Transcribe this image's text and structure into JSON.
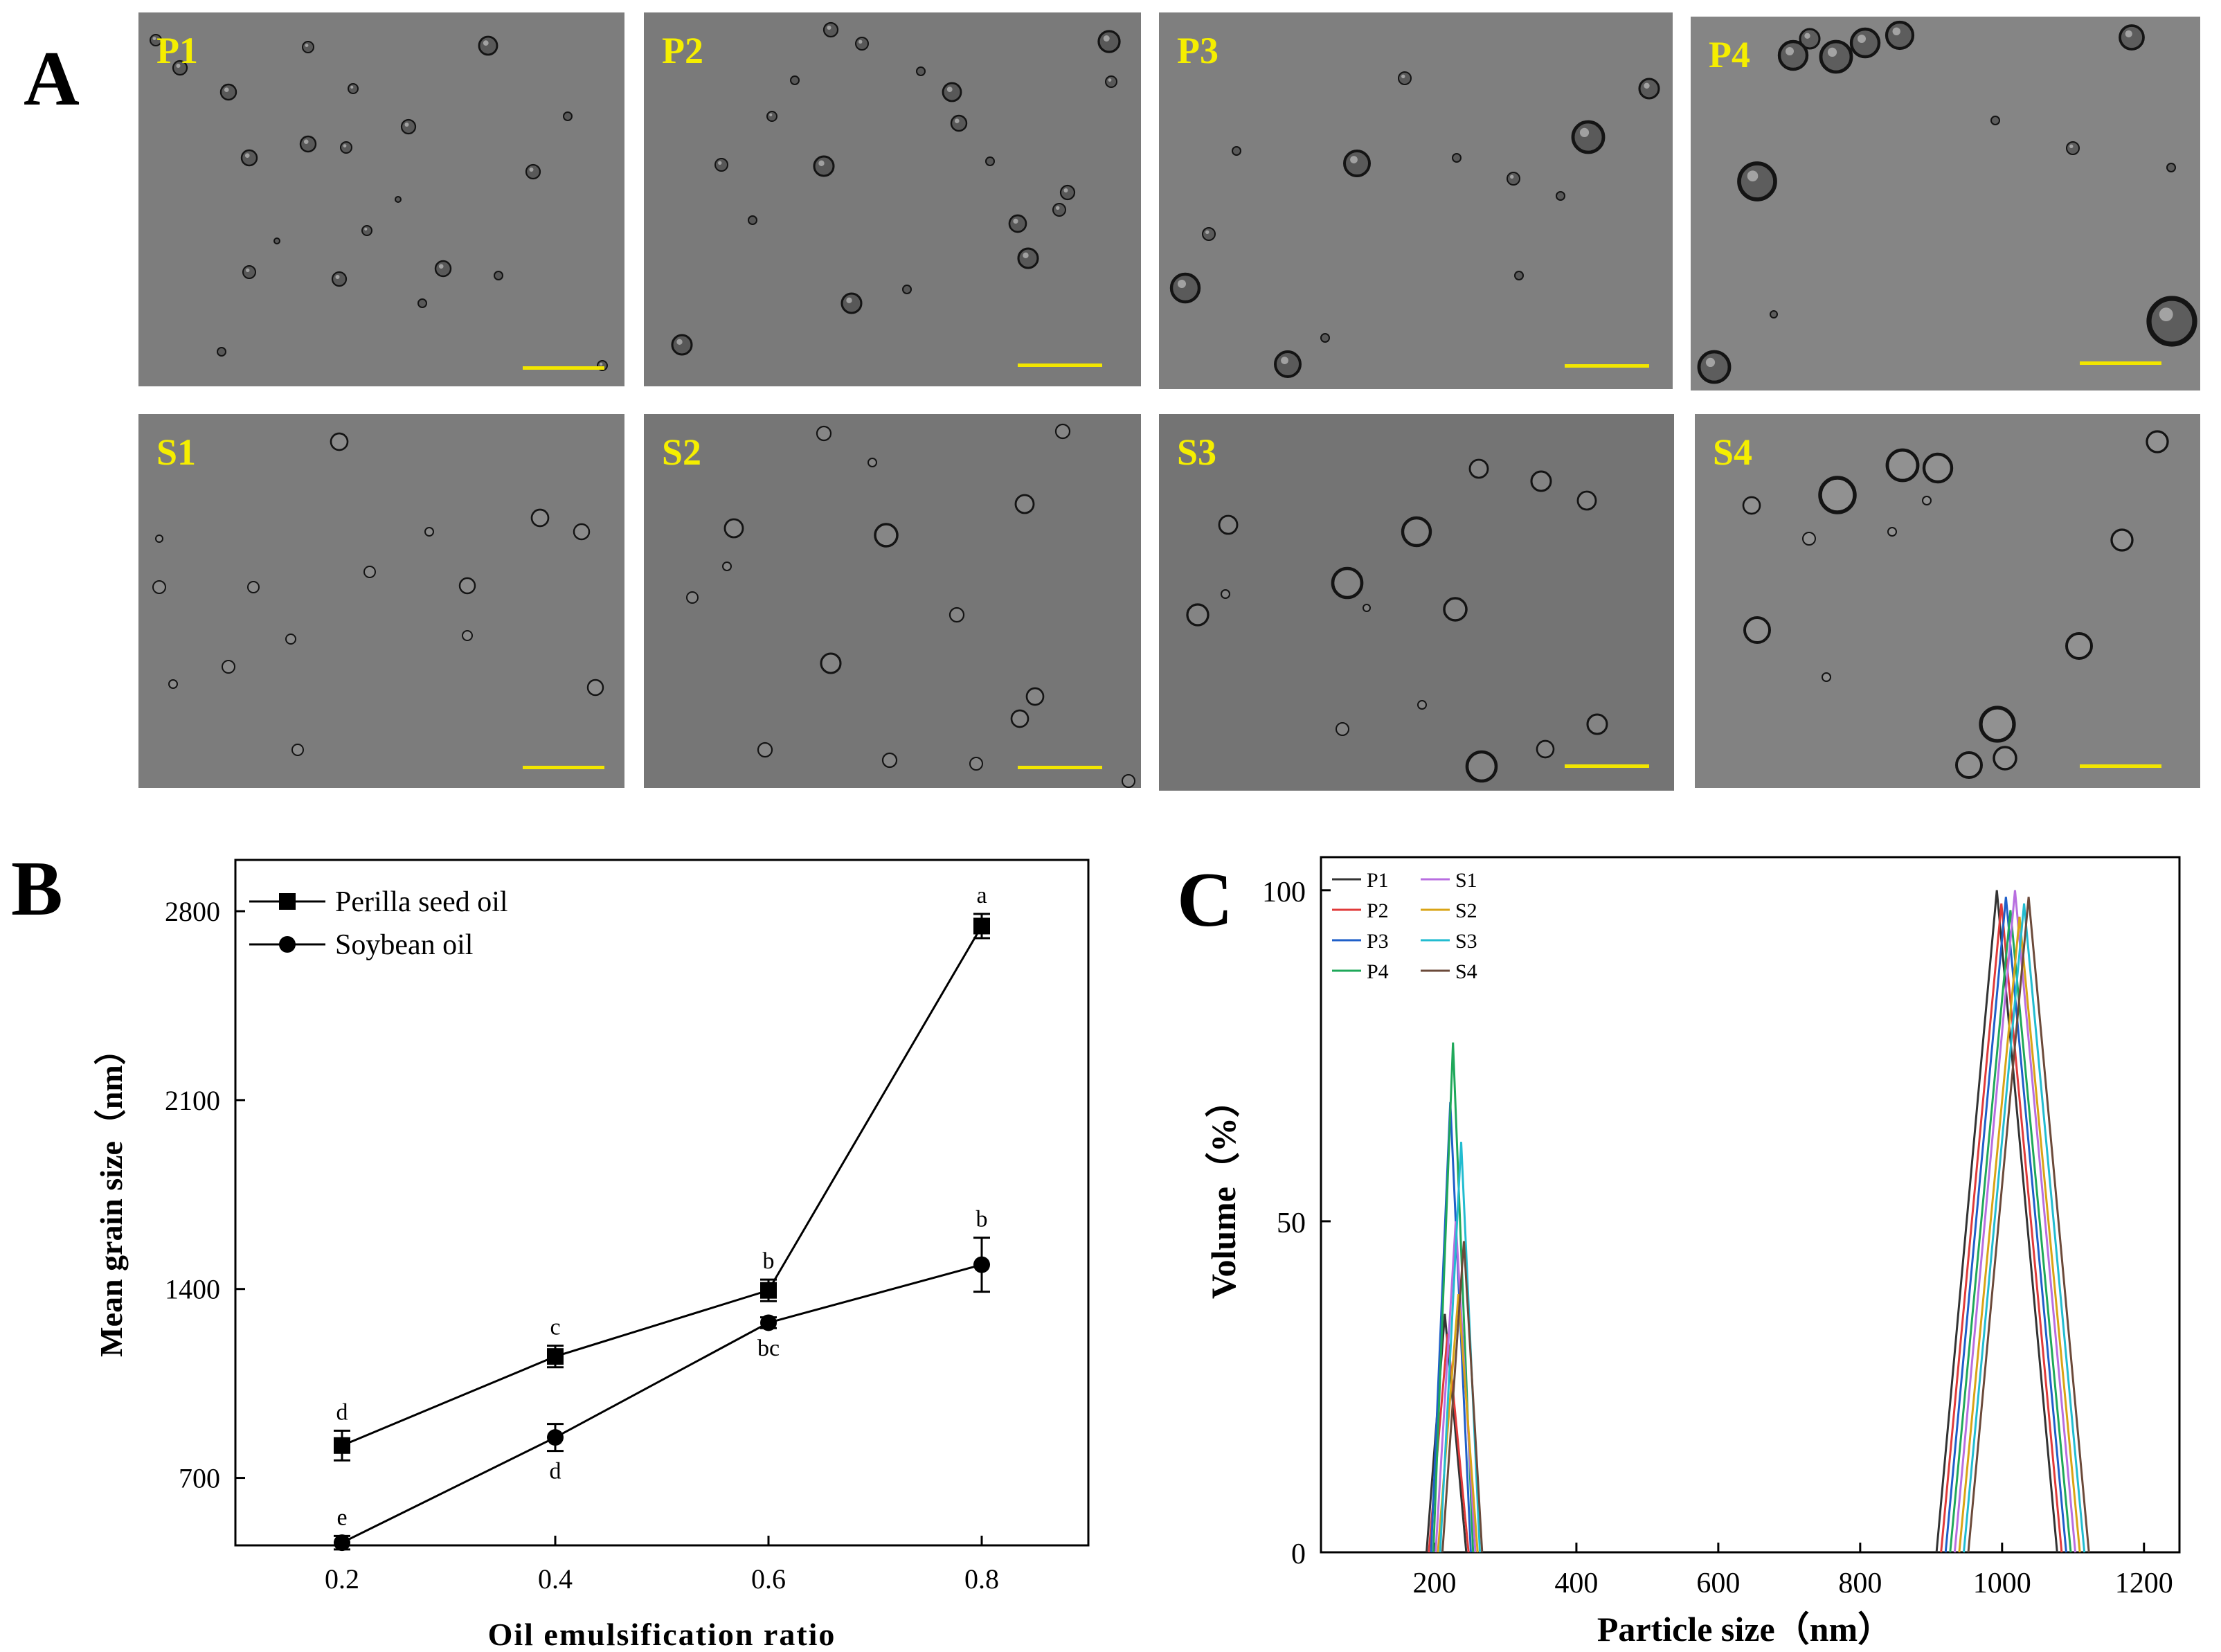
{
  "panels": {
    "a": "A",
    "b": "B",
    "c": "C"
  },
  "micrographs": [
    {
      "label": "P1",
      "tint": "#7d7d7d"
    },
    {
      "label": "P2",
      "tint": "#7a7a7a"
    },
    {
      "label": "P3",
      "tint": "#7f7f7f"
    },
    {
      "label": "P4",
      "tint": "#858585"
    },
    {
      "label": "S1",
      "tint": "#7c7c7c"
    },
    {
      "label": "S2",
      "tint": "#767676"
    },
    {
      "label": "S3",
      "tint": "#747474"
    },
    {
      "label": "S4",
      "tint": "#828282"
    }
  ],
  "chart_data": [
    {
      "type": "line",
      "panel": "B",
      "xlabel": "Oil emulsification ratio",
      "ylabel": "Mean grain size（nm）",
      "xlim": [
        0.1,
        0.9
      ],
      "ylim": [
        450,
        2990
      ],
      "x_ticks": [
        "0.2",
        "0.4",
        "0.6",
        "0.8"
      ],
      "y_ticks": [
        "700",
        "1400",
        "2100",
        "2800"
      ],
      "x": [
        0.2,
        0.4,
        0.6,
        0.8
      ],
      "legend_position": "top-left",
      "series": [
        {
          "name": "Perilla seed oil",
          "marker": "square",
          "values": [
            820,
            1150,
            1395,
            2745
          ],
          "errors": [
            55,
            40,
            40,
            45
          ],
          "letters": [
            "d",
            "c",
            "b",
            "a"
          ],
          "letter_position": "above"
        },
        {
          "name": "Soybean oil",
          "marker": "circle",
          "values": [
            460,
            850,
            1275,
            1490
          ],
          "errors": [
            25,
            50,
            20,
            100
          ],
          "letters": [
            "e",
            "d",
            "bc",
            "b"
          ],
          "letter_position": [
            "above",
            "below",
            "below",
            "above"
          ]
        }
      ]
    },
    {
      "type": "line",
      "panel": "C",
      "xlabel": "Particle size（nm）",
      "ylabel": "Volume（%）",
      "xlim": [
        40,
        1250
      ],
      "ylim": [
        0,
        105
      ],
      "x_ticks": [
        "200",
        "400",
        "600",
        "800",
        "1000",
        "1200"
      ],
      "y_ticks": [
        "0",
        "50",
        "100"
      ],
      "legend_position": "top-left",
      "series": [
        {
          "name": "P1",
          "color": "#333333",
          "peak1": 36,
          "peak2": 100
        },
        {
          "name": "P2",
          "color": "#e03a3a",
          "peak1": 33,
          "peak2": 98
        },
        {
          "name": "P3",
          "color": "#1f5fc9",
          "peak1": 68,
          "peak2": 99
        },
        {
          "name": "P4",
          "color": "#1fa85a",
          "peak1": 77,
          "peak2": 97
        },
        {
          "name": "S1",
          "color": "#b86ee0",
          "peak1": 50,
          "peak2": 100
        },
        {
          "name": "S2",
          "color": "#d9a416",
          "peak1": 39,
          "peak2": 96
        },
        {
          "name": "S3",
          "color": "#22bcd0",
          "peak1": 62,
          "peak2": 98
        },
        {
          "name": "S4",
          "color": "#6b4a3a",
          "peak1": 47,
          "peak2": 99
        }
      ]
    }
  ]
}
